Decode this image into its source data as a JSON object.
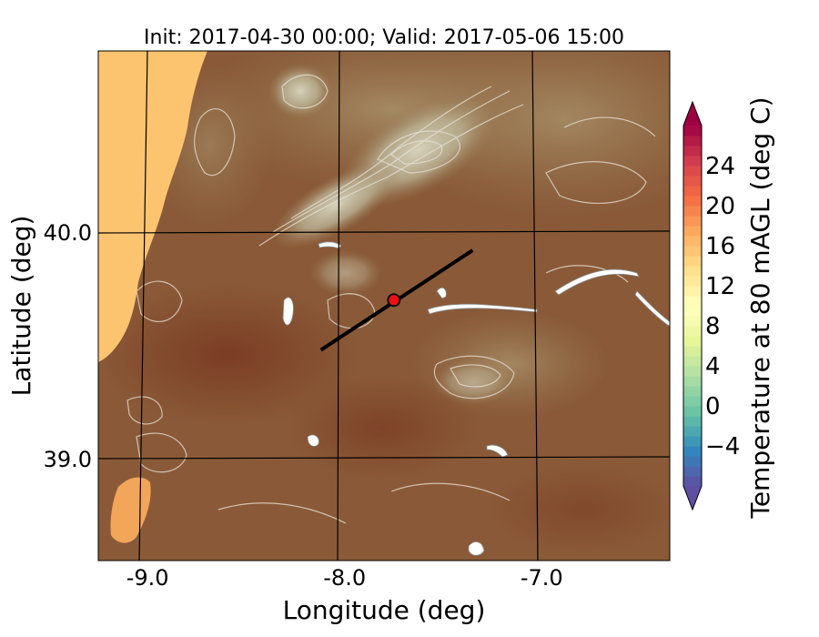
{
  "chart_data": {
    "type": "heatmap",
    "title": "Init: 2017-04-30 00:00; Valid: 2017-05-06 15:00",
    "xlabel": "Longitude (deg)",
    "ylabel": "Latitude (deg)",
    "xlim": [
      -9.25,
      -6.35
    ],
    "ylim": [
      38.55,
      40.8
    ],
    "x_ticks": [
      {
        "value": -9.0,
        "label": "-9.0"
      },
      {
        "value": -8.0,
        "label": "-8.0"
      },
      {
        "value": -7.0,
        "label": "-7.0"
      }
    ],
    "y_ticks": [
      {
        "value": 40.0,
        "label": "40.0"
      },
      {
        "value": 39.0,
        "label": "39.0"
      }
    ],
    "grid": true,
    "transect": {
      "start": [
        -8.12,
        39.48
      ],
      "end": [
        -7.35,
        39.92
      ]
    },
    "marker": {
      "lon": -7.75,
      "lat": 39.7
    },
    "colorbar": {
      "label": "Temperature at 80 mAGL (deg C)",
      "min": -8,
      "max": 28,
      "step": 1,
      "extend": "both",
      "ticks": [
        {
          "value": -4,
          "label": "−4"
        },
        {
          "value": 0,
          "label": "0"
        },
        {
          "value": 4,
          "label": "4"
        },
        {
          "value": 8,
          "label": "8"
        },
        {
          "value": 12,
          "label": "12"
        },
        {
          "value": 16,
          "label": "16"
        },
        {
          "value": 20,
          "label": "20"
        },
        {
          "value": 24,
          "label": "24"
        }
      ]
    },
    "field_colors": {
      "ocean": "#fdc470",
      "land_base": "#8a5a38",
      "land_warm": "#7c3f25",
      "highland": "#a08560",
      "peaks": "#cbc9b2",
      "contour": "#e8e4d8",
      "water": "#ffffff"
    },
    "colormap_stops": [
      "#5e4fa2",
      "#3288bd",
      "#66c2a5",
      "#abdda4",
      "#e6f598",
      "#ffffbf",
      "#fee08b",
      "#fdae61",
      "#f46d43",
      "#d53e4f",
      "#9e0142"
    ]
  }
}
